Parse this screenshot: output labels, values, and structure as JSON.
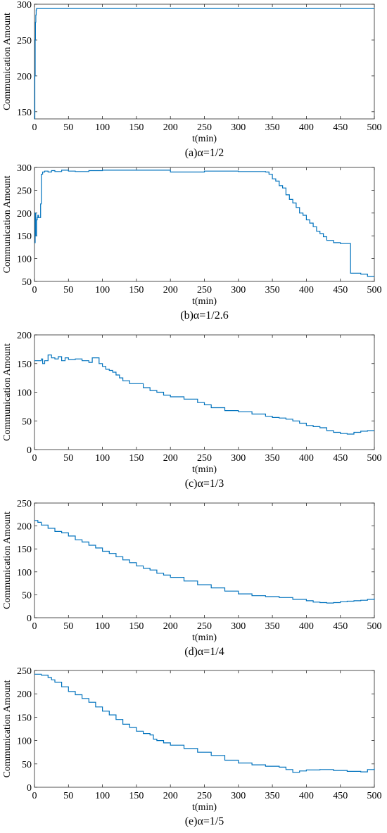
{
  "chart_data": [
    {
      "type": "line",
      "caption": "(a)α=1/2",
      "xlabel": "t(min)",
      "ylabel": "Communication Amount",
      "xlim": [
        0,
        500
      ],
      "ylim": [
        140,
        300
      ],
      "xticks": [
        0,
        50,
        100,
        150,
        200,
        250,
        300,
        350,
        400,
        450,
        500
      ],
      "yticks": [
        150,
        200,
        250,
        300
      ],
      "grid": false,
      "series": [
        {
          "color": "#0072BD",
          "x": [
            0,
            0.5,
            1,
            1.5,
            2,
            2.5,
            3,
            4,
            6,
            10,
            500
          ],
          "y": [
            140,
            200,
            250,
            275,
            285,
            292,
            294,
            294,
            294,
            294,
            294
          ]
        }
      ]
    },
    {
      "type": "line",
      "caption": "(b)α=1/2.6",
      "xlabel": "t(min)",
      "ylabel": "Communication Amount",
      "xlim": [
        0,
        500
      ],
      "ylim": [
        50,
        300
      ],
      "xticks": [
        0,
        50,
        100,
        150,
        200,
        250,
        300,
        350,
        400,
        450,
        500
      ],
      "yticks": [
        50,
        100,
        150,
        200,
        250,
        300
      ],
      "grid": false,
      "series": [
        {
          "color": "#0072BD",
          "x": [
            0,
            1,
            2,
            3,
            4,
            5,
            6,
            8,
            9,
            10,
            12,
            15,
            20,
            25,
            30,
            40,
            50,
            60,
            80,
            100,
            150,
            200,
            250,
            300,
            340,
            345,
            350,
            355,
            360,
            365,
            370,
            375,
            380,
            385,
            390,
            395,
            400,
            405,
            410,
            415,
            420,
            425,
            430,
            435,
            440,
            445,
            450,
            455,
            462,
            465,
            470,
            480,
            490,
            500
          ],
          "y": [
            135,
            200,
            150,
            185,
            190,
            195,
            190,
            190,
            220,
            285,
            290,
            292,
            290,
            293,
            291,
            294,
            292,
            291,
            293,
            294,
            294,
            290,
            292,
            291,
            290,
            285,
            275,
            270,
            260,
            255,
            240,
            230,
            222,
            212,
            200,
            195,
            185,
            178,
            170,
            160,
            155,
            148,
            140,
            140,
            135,
            135,
            133,
            133,
            133,
            68,
            68,
            66,
            61,
            61
          ]
        }
      ]
    },
    {
      "type": "line",
      "caption": "(c)α=1/3",
      "xlabel": "t(min)",
      "ylabel": "Communication Amount",
      "xlim": [
        0,
        500
      ],
      "ylim": [
        0,
        200
      ],
      "xticks": [
        0,
        50,
        100,
        150,
        200,
        250,
        300,
        350,
        400,
        450,
        500
      ],
      "yticks": [
        0,
        50,
        100,
        150,
        200
      ],
      "grid": false,
      "series": [
        {
          "color": "#0072BD",
          "x": [
            0,
            5,
            10,
            12,
            15,
            20,
            25,
            30,
            35,
            40,
            45,
            50,
            60,
            70,
            80,
            85,
            90,
            95,
            100,
            105,
            110,
            115,
            120,
            125,
            130,
            140,
            150,
            160,
            170,
            180,
            190,
            200,
            220,
            240,
            250,
            260,
            280,
            300,
            320,
            340,
            350,
            360,
            370,
            380,
            390,
            400,
            410,
            420,
            430,
            440,
            450,
            460,
            470,
            480,
            490,
            500
          ],
          "y": [
            155,
            155,
            158,
            150,
            155,
            165,
            160,
            158,
            162,
            155,
            160,
            157,
            158,
            155,
            152,
            160,
            160,
            150,
            145,
            140,
            138,
            135,
            130,
            125,
            120,
            115,
            115,
            108,
            103,
            100,
            95,
            92,
            88,
            82,
            78,
            73,
            68,
            66,
            62,
            58,
            56,
            55,
            53,
            50,
            46,
            42,
            40,
            38,
            33,
            30,
            28,
            27,
            30,
            32,
            33,
            33
          ]
        }
      ]
    },
    {
      "type": "line",
      "caption": "(d)α=1/4",
      "xlabel": "t(min)",
      "ylabel": "Communication Amount",
      "xlim": [
        0,
        500
      ],
      "ylim": [
        0,
        250
      ],
      "xticks": [
        0,
        50,
        100,
        150,
        200,
        250,
        300,
        350,
        400,
        450,
        500
      ],
      "yticks": [
        0,
        50,
        100,
        150,
        200,
        250
      ],
      "grid": false,
      "series": [
        {
          "color": "#0072BD",
          "x": [
            0,
            5,
            10,
            20,
            30,
            40,
            50,
            60,
            70,
            80,
            90,
            100,
            110,
            120,
            130,
            140,
            150,
            160,
            170,
            180,
            190,
            200,
            220,
            240,
            260,
            280,
            300,
            320,
            340,
            360,
            380,
            400,
            410,
            420,
            430,
            440,
            450,
            460,
            470,
            480,
            490,
            500
          ],
          "y": [
            212,
            208,
            202,
            195,
            188,
            185,
            178,
            170,
            165,
            158,
            152,
            145,
            140,
            133,
            126,
            120,
            113,
            108,
            104,
            97,
            93,
            88,
            80,
            72,
            65,
            58,
            52,
            48,
            46,
            44,
            40,
            37,
            34,
            33,
            32,
            33,
            35,
            36,
            37,
            38,
            40,
            42
          ]
        }
      ]
    },
    {
      "type": "line",
      "caption": "(e)α=1/5",
      "xlabel": "t(min)",
      "ylabel": "Communication Amount",
      "xlim": [
        0,
        500
      ],
      "ylim": [
        0,
        250
      ],
      "xticks": [
        0,
        50,
        100,
        150,
        200,
        250,
        300,
        350,
        400,
        450,
        500
      ],
      "yticks": [
        0,
        50,
        100,
        150,
        200,
        250
      ],
      "grid": false,
      "series": [
        {
          "color": "#0072BD",
          "x": [
            0,
            10,
            20,
            25,
            30,
            40,
            50,
            60,
            70,
            80,
            90,
            100,
            110,
            120,
            130,
            140,
            150,
            160,
            170,
            175,
            180,
            190,
            200,
            220,
            240,
            260,
            280,
            300,
            320,
            340,
            360,
            370,
            380,
            390,
            400,
            420,
            440,
            460,
            480,
            490,
            500
          ],
          "y": [
            242,
            240,
            235,
            230,
            225,
            215,
            205,
            198,
            190,
            182,
            172,
            163,
            155,
            145,
            135,
            128,
            120,
            115,
            112,
            103,
            100,
            95,
            90,
            83,
            75,
            68,
            58,
            52,
            48,
            45,
            43,
            38,
            32,
            35,
            37,
            38,
            36,
            34,
            33,
            38,
            40
          ]
        }
      ]
    }
  ]
}
